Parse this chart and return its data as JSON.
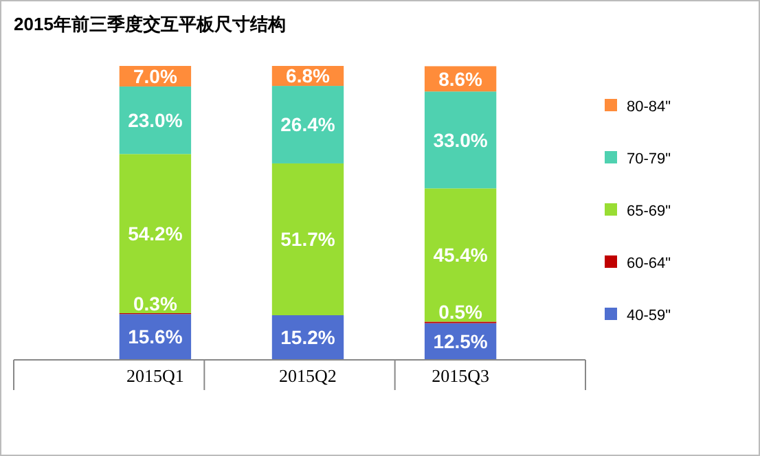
{
  "chart_data": {
    "type": "bar",
    "title": "2015年前三季度交互平板尺寸结构",
    "categories": [
      "2015Q1",
      "2015Q2",
      "2015Q3"
    ],
    "stacked": true,
    "data_labels": true,
    "legend": "right",
    "series": [
      {
        "name": "40-59\"",
        "color": "#4f6fd0",
        "values": [
          15.6,
          15.2,
          12.5
        ],
        "value_labels": [
          "15.6%",
          "15.2%",
          "12.5%"
        ]
      },
      {
        "name": "60-64\"",
        "color": "#c00000",
        "values": [
          0.3,
          null,
          0.5
        ],
        "value_labels": [
          "0.3%",
          null,
          "0.5%"
        ]
      },
      {
        "name": "65-69\"",
        "color": "#99dd33",
        "values": [
          54.2,
          51.7,
          45.4
        ],
        "value_labels": [
          "54.2%",
          "51.7%",
          "45.4%"
        ]
      },
      {
        "name": "70-79\"",
        "color": "#4fd1b0",
        "values": [
          23.0,
          26.4,
          33.0
        ],
        "value_labels": [
          "23.0%",
          "26.4%",
          "33.0%"
        ]
      },
      {
        "name": "80-84\"",
        "color": "#ff8c3a",
        "values": [
          7.0,
          6.8,
          8.6
        ],
        "value_labels": [
          "7.0%",
          "6.8%",
          "8.6%"
        ]
      }
    ]
  }
}
